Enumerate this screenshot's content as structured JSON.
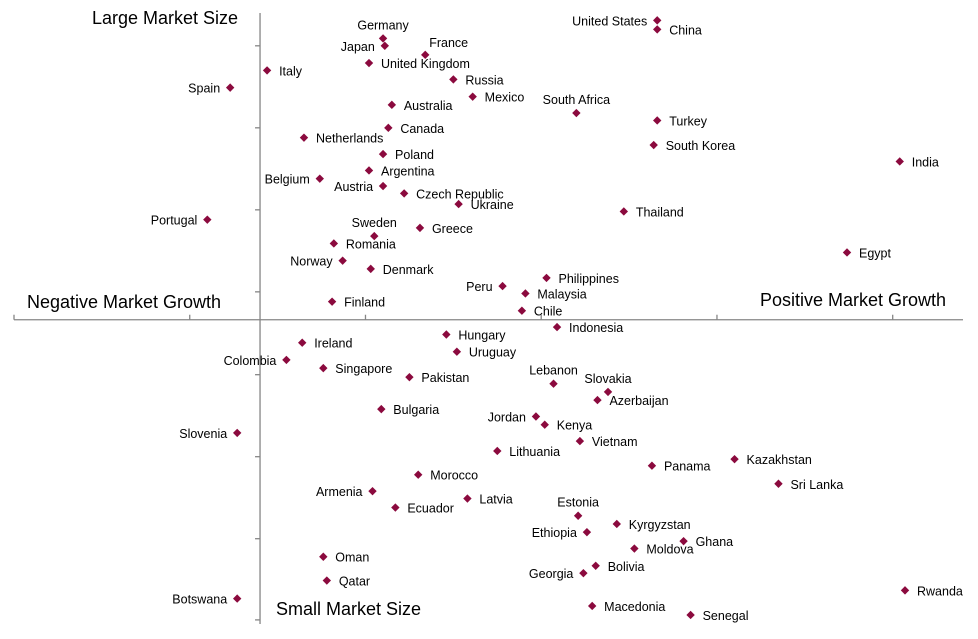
{
  "chart_data": {
    "type": "scatter",
    "title": "",
    "xlabel": "Market Growth",
    "ylabel": "Market Size",
    "xlim": [
      -1.4,
      4.0
    ],
    "ylim": [
      -3.71,
      3.74
    ],
    "x_ticks": [
      -1.4,
      -0.4,
      0.6,
      1.6,
      2.6,
      3.6
    ],
    "y_ticks": [
      3.34,
      2.34,
      1.34,
      0.34,
      -0.67,
      -1.67,
      -2.67,
      -3.66
    ],
    "axes_cross": [
      0,
      0
    ],
    "grid": false,
    "marker_color": "#8b0a3e",
    "quadrant_labels": {
      "top": "Large Market Size",
      "bottom": "Small Market Size",
      "left": "Negative Market Growth",
      "right": "Positive Market Growth"
    },
    "points": [
      {
        "name": "United States",
        "x": 2.26,
        "y": 3.65,
        "label": "left"
      },
      {
        "name": "China",
        "x": 2.26,
        "y": 3.54,
        "label": "right"
      },
      {
        "name": "Germany",
        "x": 0.7,
        "y": 3.43,
        "label": "above"
      },
      {
        "name": "Japan",
        "x": 0.71,
        "y": 3.34,
        "label": "left"
      },
      {
        "name": "France",
        "x": 0.94,
        "y": 3.23,
        "label": "aboveright"
      },
      {
        "name": "United Kingdom",
        "x": 0.62,
        "y": 3.13,
        "label": "right"
      },
      {
        "name": "Italy",
        "x": 0.04,
        "y": 3.04,
        "label": "right"
      },
      {
        "name": "Spain",
        "x": -0.17,
        "y": 2.83,
        "label": "left"
      },
      {
        "name": "Russia",
        "x": 1.1,
        "y": 2.93,
        "label": "right"
      },
      {
        "name": "Mexico",
        "x": 1.21,
        "y": 2.72,
        "label": "right"
      },
      {
        "name": "Australia",
        "x": 0.75,
        "y": 2.62,
        "label": "right"
      },
      {
        "name": "South Africa",
        "x": 1.8,
        "y": 2.52,
        "label": "above"
      },
      {
        "name": "Turkey",
        "x": 2.26,
        "y": 2.43,
        "label": "right"
      },
      {
        "name": "Canada",
        "x": 0.73,
        "y": 2.34,
        "label": "right"
      },
      {
        "name": "Netherlands",
        "x": 0.25,
        "y": 2.22,
        "label": "right"
      },
      {
        "name": "South Korea",
        "x": 2.24,
        "y": 2.13,
        "label": "right"
      },
      {
        "name": "Poland",
        "x": 0.7,
        "y": 2.02,
        "label": "right"
      },
      {
        "name": "India",
        "x": 3.64,
        "y": 1.93,
        "label": "right"
      },
      {
        "name": "Argentina",
        "x": 0.62,
        "y": 1.82,
        "label": "right"
      },
      {
        "name": "Belgium",
        "x": 0.34,
        "y": 1.72,
        "label": "left"
      },
      {
        "name": "Austria",
        "x": 0.7,
        "y": 1.63,
        "label": "left"
      },
      {
        "name": "Czech Republic",
        "x": 0.82,
        "y": 1.54,
        "label": "right"
      },
      {
        "name": "Ukraine",
        "x": 1.13,
        "y": 1.41,
        "label": "right"
      },
      {
        "name": "Thailand",
        "x": 2.07,
        "y": 1.32,
        "label": "right"
      },
      {
        "name": "Portugal",
        "x": -0.3,
        "y": 1.22,
        "label": "left"
      },
      {
        "name": "Greece",
        "x": 0.91,
        "y": 1.12,
        "label": "right"
      },
      {
        "name": "Sweden",
        "x": 0.65,
        "y": 1.02,
        "label": "above"
      },
      {
        "name": "Romania",
        "x": 0.42,
        "y": 0.93,
        "label": "right"
      },
      {
        "name": "Egypt",
        "x": 3.34,
        "y": 0.82,
        "label": "right"
      },
      {
        "name": "Norway",
        "x": 0.47,
        "y": 0.72,
        "label": "left"
      },
      {
        "name": "Denmark",
        "x": 0.63,
        "y": 0.62,
        "label": "right"
      },
      {
        "name": "Philippines",
        "x": 1.63,
        "y": 0.51,
        "label": "right"
      },
      {
        "name": "Peru",
        "x": 1.38,
        "y": 0.41,
        "label": "left"
      },
      {
        "name": "Malaysia",
        "x": 1.51,
        "y": 0.32,
        "label": "right"
      },
      {
        "name": "Finland",
        "x": 0.41,
        "y": 0.22,
        "label": "right"
      },
      {
        "name": "Chile",
        "x": 1.49,
        "y": 0.11,
        "label": "right"
      },
      {
        "name": "Indonesia",
        "x": 1.69,
        "y": -0.09,
        "label": "right"
      },
      {
        "name": "Hungary",
        "x": 1.06,
        "y": -0.18,
        "label": "right"
      },
      {
        "name": "Ireland",
        "x": 0.24,
        "y": -0.28,
        "label": "right"
      },
      {
        "name": "Uruguay",
        "x": 1.12,
        "y": -0.39,
        "label": "right"
      },
      {
        "name": "Colombia",
        "x": 0.15,
        "y": -0.49,
        "label": "left"
      },
      {
        "name": "Singapore",
        "x": 0.36,
        "y": -0.59,
        "label": "right"
      },
      {
        "name": "Pakistan",
        "x": 0.85,
        "y": -0.7,
        "label": "right"
      },
      {
        "name": "Lebanon",
        "x": 1.67,
        "y": -0.78,
        "label": "above"
      },
      {
        "name": "Slovakia",
        "x": 1.98,
        "y": -0.88,
        "label": "above"
      },
      {
        "name": "Azerbaijan",
        "x": 1.92,
        "y": -0.98,
        "label": "right"
      },
      {
        "name": "Bulgaria",
        "x": 0.69,
        "y": -1.09,
        "label": "right"
      },
      {
        "name": "Jordan",
        "x": 1.57,
        "y": -1.18,
        "label": "left"
      },
      {
        "name": "Kenya",
        "x": 1.62,
        "y": -1.28,
        "label": "right"
      },
      {
        "name": "Slovenia",
        "x": -0.13,
        "y": -1.38,
        "label": "left"
      },
      {
        "name": "Vietnam",
        "x": 1.82,
        "y": -1.48,
        "label": "right"
      },
      {
        "name": "Lithuania",
        "x": 1.35,
        "y": -1.6,
        "label": "right"
      },
      {
        "name": "Kazakhstan",
        "x": 2.7,
        "y": -1.7,
        "label": "right"
      },
      {
        "name": "Panama",
        "x": 2.23,
        "y": -1.78,
        "label": "right"
      },
      {
        "name": "Morocco",
        "x": 0.9,
        "y": -1.89,
        "label": "right"
      },
      {
        "name": "Sri Lanka",
        "x": 2.95,
        "y": -2.0,
        "label": "right"
      },
      {
        "name": "Armenia",
        "x": 0.64,
        "y": -2.09,
        "label": "left"
      },
      {
        "name": "Latvia",
        "x": 1.18,
        "y": -2.18,
        "label": "right"
      },
      {
        "name": "Ecuador",
        "x": 0.77,
        "y": -2.29,
        "label": "right"
      },
      {
        "name": "Estonia",
        "x": 1.81,
        "y": -2.39,
        "label": "above"
      },
      {
        "name": "Kyrgyzstan",
        "x": 2.03,
        "y": -2.49,
        "label": "right"
      },
      {
        "name": "Ethiopia",
        "x": 1.86,
        "y": -2.59,
        "label": "left"
      },
      {
        "name": "Ghana",
        "x": 2.41,
        "y": -2.7,
        "label": "right"
      },
      {
        "name": "Moldova",
        "x": 2.13,
        "y": -2.79,
        "label": "right"
      },
      {
        "name": "Oman",
        "x": 0.36,
        "y": -2.89,
        "label": "right"
      },
      {
        "name": "Bolivia",
        "x": 1.91,
        "y": -3.0,
        "label": "right"
      },
      {
        "name": "Georgia",
        "x": 1.84,
        "y": -3.09,
        "label": "left"
      },
      {
        "name": "Qatar",
        "x": 0.38,
        "y": -3.18,
        "label": "right"
      },
      {
        "name": "Rwanda",
        "x": 3.67,
        "y": -3.3,
        "label": "right"
      },
      {
        "name": "Botswana",
        "x": -0.13,
        "y": -3.4,
        "label": "left"
      },
      {
        "name": "Macedonia",
        "x": 1.89,
        "y": -3.49,
        "label": "right"
      },
      {
        "name": "Senegal",
        "x": 2.45,
        "y": -3.6,
        "label": "right"
      }
    ]
  }
}
